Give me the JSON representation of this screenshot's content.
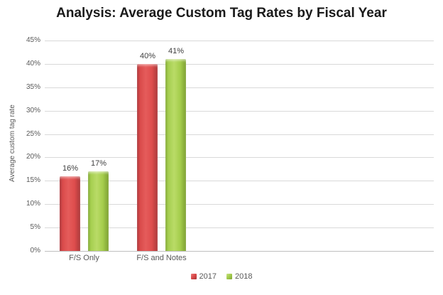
{
  "title": "Analysis: Average Custom Tag Rates by Fiscal Year",
  "chart_data": {
    "type": "bar",
    "title": "Analysis: Average Custom Tag Rates by Fiscal Year",
    "categories": [
      "F/S Only",
      "F/S and Notes"
    ],
    "series": [
      {
        "name": "2017",
        "values": [
          16,
          40
        ],
        "labels": [
          "16%",
          "40%"
        ],
        "color": "#DC4B4B"
      },
      {
        "name": "2018",
        "values": [
          17,
          41
        ],
        "labels": [
          "17%",
          "41%"
        ],
        "color": "#A5CE4F"
      }
    ],
    "xlabel": "",
    "ylabel": "Average custom tag rate",
    "ylim": [
      0,
      45
    ],
    "yticks": [
      {
        "label": "45%",
        "value": 45
      },
      {
        "label": "40%",
        "value": 40
      },
      {
        "label": "35%",
        "value": 35
      },
      {
        "label": "30%",
        "value": 30
      },
      {
        "label": "25%",
        "value": 25
      },
      {
        "label": "20%",
        "value": 20
      },
      {
        "label": "15%",
        "value": 15
      },
      {
        "label": "10%",
        "value": 10
      },
      {
        "label": "5%",
        "value": 5
      },
      {
        "label": "0%",
        "value": 0
      }
    ],
    "grid": true,
    "data_labels_shown": true,
    "legend_position": "bottom"
  },
  "colors": {
    "series_2017": "#DC4B4B",
    "series_2018": "#A5CE4F",
    "gridline": "#D9D9D9",
    "axis_line": "#BFBFBF",
    "tick_text": "#595959",
    "data_label_text": "#3F3F3F",
    "title_text": "#1A1A1A",
    "background": "#FFFFFF"
  }
}
